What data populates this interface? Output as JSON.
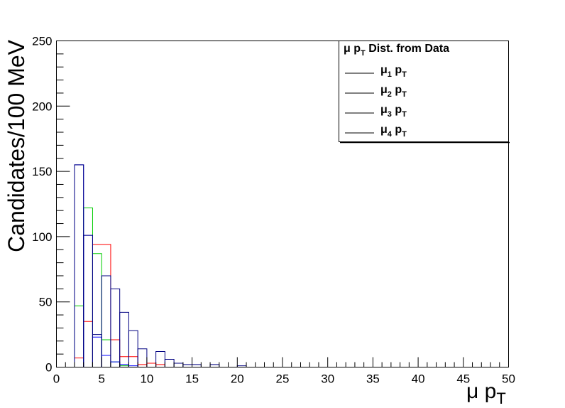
{
  "chart_data": {
    "type": "histogram-step",
    "xlabel": {
      "base": "μ p",
      "sub": "T"
    },
    "ylabel": "Candidates/100 MeV",
    "xlim": [
      0,
      50
    ],
    "ylim": [
      0,
      250
    ],
    "x_ticks": [
      "0",
      "5",
      "10",
      "15",
      "20",
      "25",
      "30",
      "35",
      "40",
      "45",
      "50"
    ],
    "y_ticks": [
      "0",
      "50",
      "100",
      "150",
      "200",
      "250"
    ],
    "x_tick_values": [
      0,
      5,
      10,
      15,
      20,
      25,
      30,
      35,
      40,
      45,
      50
    ],
    "y_tick_values": [
      0,
      50,
      100,
      150,
      200,
      250
    ],
    "grid": false,
    "legend_placement": "top-right",
    "legend": {
      "title": {
        "pre": "μ p",
        "sub": "T",
        "post": " Dist. from Data"
      },
      "entries": [
        {
          "pre": "μ",
          "sub1": "1",
          "mid": " p",
          "sub2": "T"
        },
        {
          "pre": "μ",
          "sub1": "2",
          "mid": " p",
          "sub2": "T"
        },
        {
          "pre": "μ",
          "sub1": "3",
          "mid": " p",
          "sub2": "T"
        },
        {
          "pre": "μ",
          "sub1": "4",
          "mid": " p",
          "sub2": "T"
        }
      ]
    },
    "series": [
      {
        "color": "#ff0000",
        "bins": [
          {
            "x0": 2.0,
            "x1": 3.0,
            "y": 7
          },
          {
            "x0": 3.0,
            "x1": 4.0,
            "y": 35
          },
          {
            "x0": 4.0,
            "x1": 6.0,
            "y": 94
          },
          {
            "x0": 6.0,
            "x1": 7.0,
            "y": 21
          },
          {
            "x0": 7.0,
            "x1": 9.0,
            "y": 8
          },
          {
            "x0": 9.0,
            "x1": 10.0,
            "y": 2
          },
          {
            "x0": 10.0,
            "x1": 11.0,
            "y": 3
          },
          {
            "x0": 11.0,
            "x1": 12.0,
            "y": 2
          }
        ]
      },
      {
        "color": "#00cc00",
        "bins": [
          {
            "x0": 2.0,
            "x1": 3.0,
            "y": 47
          },
          {
            "x0": 3.0,
            "x1": 4.0,
            "y": 122
          },
          {
            "x0": 4.0,
            "x1": 5.0,
            "y": 87
          },
          {
            "x0": 5.0,
            "x1": 6.0,
            "y": 21
          },
          {
            "x0": 6.0,
            "x1": 7.0,
            "y": 4
          },
          {
            "x0": 7.0,
            "x1": 8.0,
            "y": 1
          }
        ]
      },
      {
        "color": "#0000ff",
        "bins": [
          {
            "x0": 2.0,
            "x1": 3.0,
            "y": 155
          },
          {
            "x0": 3.0,
            "x1": 4.0,
            "y": 101
          },
          {
            "x0": 4.0,
            "x1": 5.0,
            "y": 23
          },
          {
            "x0": 5.0,
            "x1": 6.0,
            "y": 9
          },
          {
            "x0": 6.0,
            "x1": 7.0,
            "y": 4
          },
          {
            "x0": 7.0,
            "x1": 8.0,
            "y": 2
          },
          {
            "x0": 8.0,
            "x1": 9.0,
            "y": 1
          }
        ]
      },
      {
        "color": "#000080",
        "bins": [
          {
            "x0": 2.0,
            "x1": 3.0,
            "y": 155
          },
          {
            "x0": 3.0,
            "x1": 4.0,
            "y": 101
          },
          {
            "x0": 4.0,
            "x1": 5.0,
            "y": 25
          },
          {
            "x0": 5.0,
            "x1": 6.0,
            "y": 70
          },
          {
            "x0": 6.0,
            "x1": 7.0,
            "y": 60
          },
          {
            "x0": 7.0,
            "x1": 8.0,
            "y": 42
          },
          {
            "x0": 8.0,
            "x1": 9.0,
            "y": 28
          },
          {
            "x0": 9.0,
            "x1": 10.0,
            "y": 14
          },
          {
            "x0": 11.0,
            "x1": 12.0,
            "y": 12
          },
          {
            "x0": 12.0,
            "x1": 13.0,
            "y": 6
          },
          {
            "x0": 13.0,
            "x1": 14.0,
            "y": 3
          },
          {
            "x0": 14.0,
            "x1": 16.0,
            "y": 2
          },
          {
            "x0": 17.0,
            "x1": 18.0,
            "y": 2
          },
          {
            "x0": 20.0,
            "x1": 21.0,
            "y": 1
          }
        ]
      }
    ]
  }
}
